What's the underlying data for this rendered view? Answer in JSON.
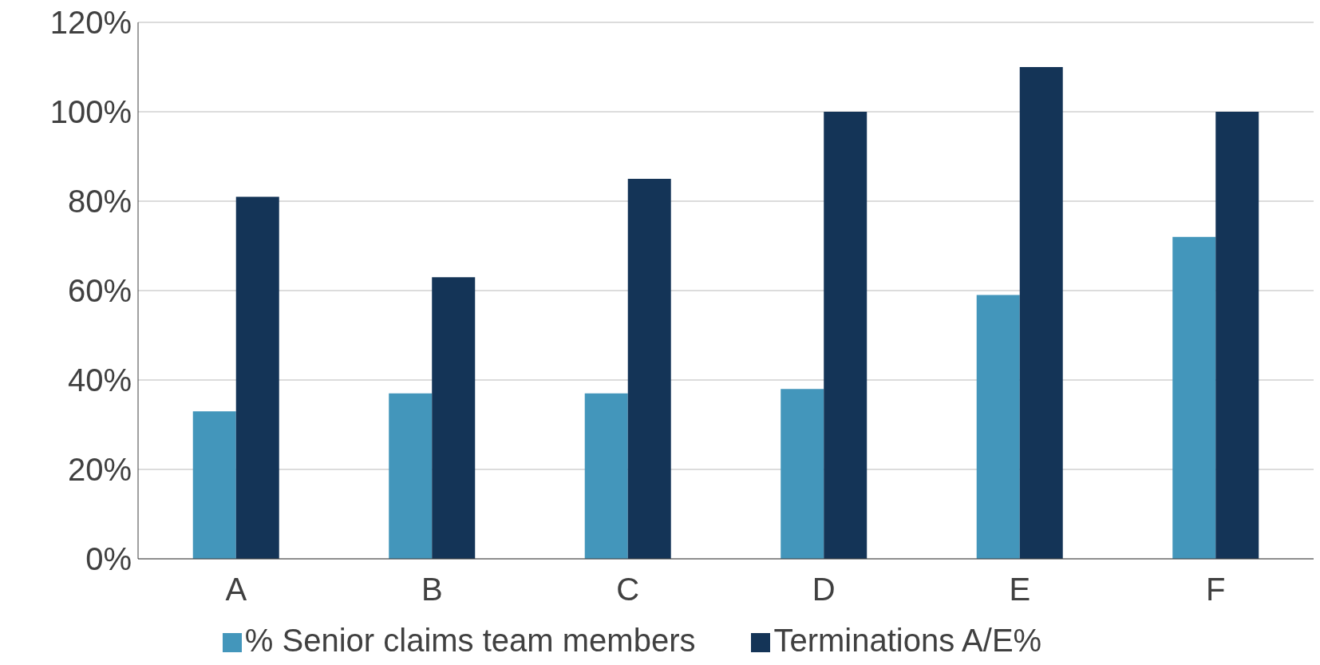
{
  "chart_data": {
    "type": "bar",
    "categories": [
      "A",
      "B",
      "C",
      "D",
      "E",
      "F"
    ],
    "series": [
      {
        "name": "% Senior claims team members",
        "color": "#4396bb",
        "values": [
          33,
          37,
          37,
          38,
          59,
          72
        ]
      },
      {
        "name": "Terminations A/E%",
        "color": "#143457",
        "values": [
          81,
          63,
          85,
          100,
          110,
          100
        ]
      }
    ],
    "ylim": [
      0,
      120
    ],
    "yticks": [
      {
        "value": 0,
        "label": "0%"
      },
      {
        "value": 20,
        "label": "20%"
      },
      {
        "value": 40,
        "label": "40%"
      },
      {
        "value": 60,
        "label": "60%"
      },
      {
        "value": 80,
        "label": "80%"
      },
      {
        "value": 100,
        "label": "100%"
      },
      {
        "value": 120,
        "label": "120%"
      }
    ],
    "grid": "y",
    "legend": "bottom"
  }
}
